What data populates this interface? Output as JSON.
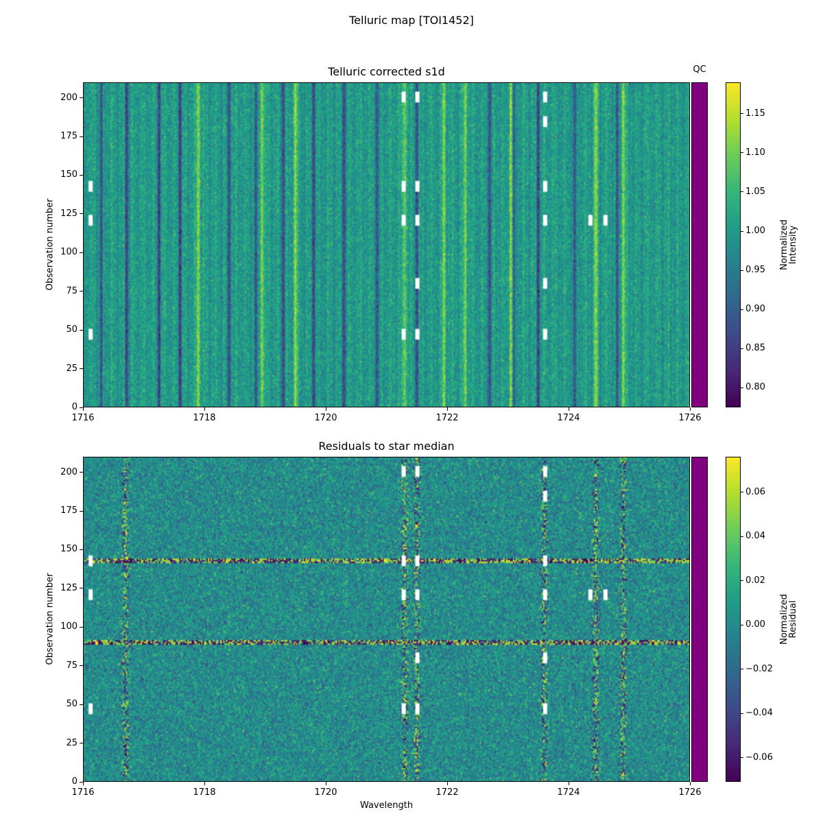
{
  "figure": {
    "suptitle": "Telluric map [TOI1452]",
    "qc_label": "QC",
    "qc_color": "#800080",
    "colormap": "viridis"
  },
  "chart_data": [
    {
      "type": "heatmap",
      "title": "Telluric corrected s1d",
      "xlabel": "",
      "ylabel": "Observation number",
      "xlim": [
        1716,
        1726
      ],
      "ylim": [
        0,
        210
      ],
      "xticks": [
        "1716",
        "1718",
        "1720",
        "1722",
        "1724",
        "1726"
      ],
      "yticks": [
        "0",
        "25",
        "50",
        "75",
        "100",
        "125",
        "150",
        "175",
        "200"
      ],
      "colorbar": {
        "label": [
          "Normalized",
          "Intensity"
        ],
        "range": [
          0.775,
          1.19
        ],
        "ticks": [
          "0.80",
          "0.85",
          "0.90",
          "0.95",
          "1.00",
          "1.05",
          "1.10",
          "1.15"
        ],
        "tick_values": [
          0.8,
          0.85,
          0.9,
          0.95,
          1.0,
          1.05,
          1.1,
          1.15
        ]
      },
      "dark_lines_wavelength": [
        1716.3,
        1716.72,
        1717.25,
        1717.6,
        1718.4,
        1718.85,
        1719.3,
        1719.8,
        1720.3,
        1720.85,
        1721.5,
        1722.7,
        1723.1,
        1723.5,
        1724.1,
        1724.8
      ],
      "bright_lines_wavelength": [
        1717.9,
        1718.95,
        1719.5,
        1721.3,
        1721.95,
        1722.3,
        1723.05,
        1724.45,
        1724.9
      ],
      "masked_regions": [
        {
          "wavelength": 1716.12,
          "obs": [
            47,
            121,
            143
          ]
        },
        {
          "wavelength": 1721.28,
          "obs": [
            47,
            121,
            143,
            201
          ]
        },
        {
          "wavelength": 1721.5,
          "obs": [
            47,
            80,
            121,
            143,
            201
          ]
        },
        {
          "wavelength": 1723.6,
          "obs": [
            47,
            80,
            121,
            143,
            185,
            201
          ]
        },
        {
          "wavelength": 1724.35,
          "obs": [
            121
          ]
        },
        {
          "wavelength": 1724.6,
          "obs": [
            121
          ]
        }
      ]
    },
    {
      "type": "heatmap",
      "title": "Residuals to star median",
      "xlabel": "Wavelength",
      "ylabel": "Observation number",
      "xlim": [
        1716,
        1726
      ],
      "ylim": [
        0,
        210
      ],
      "xticks": [
        "1716",
        "1718",
        "1720",
        "1722",
        "1724",
        "1726"
      ],
      "yticks": [
        "0",
        "25",
        "50",
        "75",
        "100",
        "125",
        "150",
        "175",
        "200"
      ],
      "colorbar": {
        "label": [
          "Normalized",
          "Residual"
        ],
        "range": [
          -0.071,
          0.076
        ],
        "ticks": [
          "−0.06",
          "−0.04",
          "−0.02",
          "0.00",
          "0.02",
          "0.04",
          "0.06"
        ],
        "tick_values": [
          -0.06,
          -0.04,
          -0.02,
          0.0,
          0.02,
          0.04,
          0.06
        ]
      },
      "bad_rows_obs": [
        90,
        143
      ],
      "masked_regions": [
        {
          "wavelength": 1716.12,
          "obs": [
            47,
            121,
            143
          ]
        },
        {
          "wavelength": 1721.28,
          "obs": [
            47,
            121,
            143,
            201
          ]
        },
        {
          "wavelength": 1721.5,
          "obs": [
            47,
            80,
            121,
            143,
            201
          ]
        },
        {
          "wavelength": 1723.6,
          "obs": [
            47,
            80,
            121,
            143,
            185,
            201
          ]
        },
        {
          "wavelength": 1724.35,
          "obs": [
            121
          ]
        },
        {
          "wavelength": 1724.6,
          "obs": [
            121
          ]
        }
      ]
    }
  ]
}
